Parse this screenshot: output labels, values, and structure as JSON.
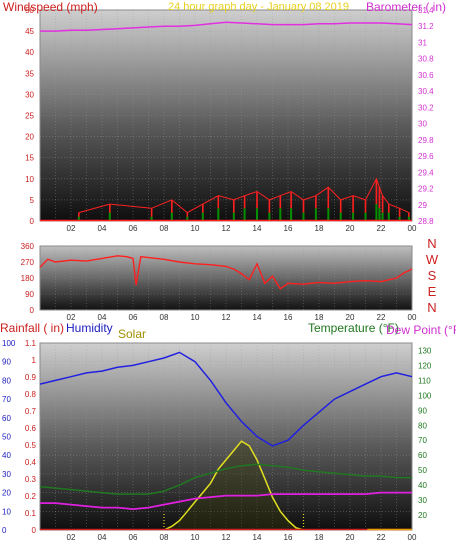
{
  "header": {
    "wind_title": "Windspeed (mph)",
    "center_title": "24 hour graph day - January 08 2019",
    "baro_title": "Barometer ( in)"
  },
  "hours": [
    "02",
    "04",
    "06",
    "08",
    "10",
    "12",
    "14",
    "16",
    "18",
    "20",
    "22",
    "00"
  ],
  "wind_chart": {
    "type": "line",
    "ylim": [
      0,
      50
    ],
    "yticks": [
      0,
      5,
      10,
      15,
      20,
      25,
      30,
      35,
      40,
      45,
      50
    ],
    "barometer_ylim": [
      28.8,
      31.4
    ],
    "barometer_ticks": [
      "28.8",
      "29",
      "29.2",
      "29.4",
      "29.6",
      "29.8",
      "30",
      "30.2",
      "30.4",
      "30.6",
      "30.8",
      "31",
      "31.2",
      "31.4"
    ],
    "barometer_x": [
      0,
      1,
      2,
      3,
      4,
      5,
      6,
      7,
      8,
      9,
      10,
      11,
      12,
      13,
      14,
      15,
      16,
      17,
      18,
      19,
      20,
      21,
      22,
      23,
      24
    ],
    "barometer": [
      31.14,
      31.14,
      31.15,
      31.15,
      31.16,
      31.17,
      31.18,
      31.19,
      31.2,
      31.2,
      31.21,
      31.23,
      31.25,
      31.24,
      31.23,
      31.22,
      31.22,
      31.22,
      31.23,
      31.23,
      31.24,
      31.24,
      31.24,
      31.23,
      31.22
    ],
    "gust_x": [
      2.5,
      4.5,
      7.2,
      8.5,
      9.5,
      10.5,
      11.5,
      12.5,
      13.2,
      14.0,
      14.8,
      15.5,
      16.2,
      17.0,
      17.8,
      18.6,
      19.4,
      20.2,
      21.0,
      21.7,
      21.9,
      22.1,
      22.5,
      23.2,
      23.8
    ],
    "gust": [
      2,
      4,
      3,
      5,
      2,
      4,
      6,
      5,
      6,
      7,
      5,
      6,
      7,
      5,
      6,
      8,
      5,
      6,
      5,
      10,
      8,
      6,
      4,
      3,
      2
    ],
    "speed": [
      1,
      2,
      1,
      2,
      1,
      2,
      3,
      2,
      3,
      3,
      2,
      3,
      3,
      2,
      3,
      3,
      2,
      2,
      2,
      4,
      3,
      2,
      2,
      1,
      1
    ],
    "colors": {
      "gust": "#ff2020",
      "speed": "#009000",
      "barometer": "#e030e0"
    }
  },
  "wind_dir_chart": {
    "type": "line",
    "ylim": [
      0,
      360
    ],
    "yticks": [
      "0",
      "90",
      "180",
      "270",
      "360"
    ],
    "compass": [
      "N",
      "W",
      "S",
      "E",
      "N"
    ],
    "x": [
      0,
      0.5,
      1,
      2,
      3,
      4,
      5,
      5.6,
      6,
      6.2,
      6.5,
      7,
      8,
      9,
      10,
      11,
      12,
      12.5,
      13,
      13.5,
      14,
      14.5,
      15,
      15.5,
      16,
      17,
      18,
      19,
      20,
      21,
      22,
      22.5,
      23,
      23.5,
      24
    ],
    "values": [
      240,
      285,
      270,
      280,
      275,
      290,
      305,
      300,
      290,
      140,
      300,
      295,
      285,
      270,
      260,
      255,
      245,
      230,
      205,
      170,
      260,
      150,
      190,
      120,
      150,
      145,
      155,
      150,
      160,
      165,
      160,
      170,
      180,
      210,
      230
    ],
    "color": "#ff2020"
  },
  "weather_chart": {
    "type": "line",
    "labels": {
      "rainfall": "Rainfall ( in)",
      "humidity": "Humidity",
      "solar": "Solar",
      "temperature": "Temperature (°F)",
      "dew_point": "Dew Point (°F)"
    },
    "humidity_ylim": [
      0,
      100
    ],
    "humidity_ticks": [
      "0",
      "10",
      "20",
      "30",
      "40",
      "50",
      "60",
      "70",
      "80",
      "90",
      "100"
    ],
    "rain_ylim": [
      0,
      1.1
    ],
    "rain_ticks": [
      "0",
      "0.1",
      "0.2",
      "0.3",
      "0.4",
      "0.5",
      "0.6",
      "0.7",
      "0.8",
      "0.9",
      "1",
      "1.1"
    ],
    "temp_ylim": [
      10,
      135
    ],
    "temp_ticks": [
      "20",
      "30",
      "40",
      "50",
      "60",
      "70",
      "80",
      "90",
      "100",
      "110",
      "120",
      "130"
    ],
    "x": [
      0,
      1,
      2,
      3,
      4,
      5,
      6,
      7,
      8,
      9,
      10,
      11,
      12,
      13,
      14,
      15,
      16,
      17,
      18,
      19,
      20,
      21,
      22,
      23,
      24
    ],
    "humidity": [
      78,
      80,
      82,
      84,
      85,
      87,
      88,
      90,
      92,
      95,
      90,
      80,
      68,
      58,
      50,
      45,
      48,
      56,
      63,
      70,
      74,
      78,
      82,
      84,
      82
    ],
    "temperature": [
      39,
      38,
      37,
      36,
      35,
      34,
      34,
      34,
      36,
      40,
      45,
      48,
      51,
      53,
      54,
      53,
      52,
      50,
      49,
      48,
      47,
      46,
      46,
      45,
      45
    ],
    "dew_point": [
      28,
      28,
      27,
      26,
      25,
      25,
      24,
      25,
      27,
      29,
      31,
      32,
      33,
      33,
      33,
      34,
      34,
      34,
      34,
      34,
      34,
      34,
      35,
      35,
      35
    ],
    "solar_x": [
      8,
      8.5,
      9,
      9.5,
      10,
      10.5,
      11,
      11.5,
      12,
      12.5,
      13,
      13.5,
      14,
      14.5,
      15,
      15.5,
      16,
      16.5,
      17
    ],
    "solar": [
      0,
      8,
      20,
      40,
      60,
      80,
      100,
      130,
      150,
      170,
      190,
      180,
      150,
      110,
      70,
      40,
      20,
      5,
      0
    ],
    "colors": {
      "humidity": "#2020e0",
      "temperature": "#207820",
      "dew_point": "#e020e0",
      "solar": "#e0e020",
      "rainfall": "#cc2020"
    }
  }
}
